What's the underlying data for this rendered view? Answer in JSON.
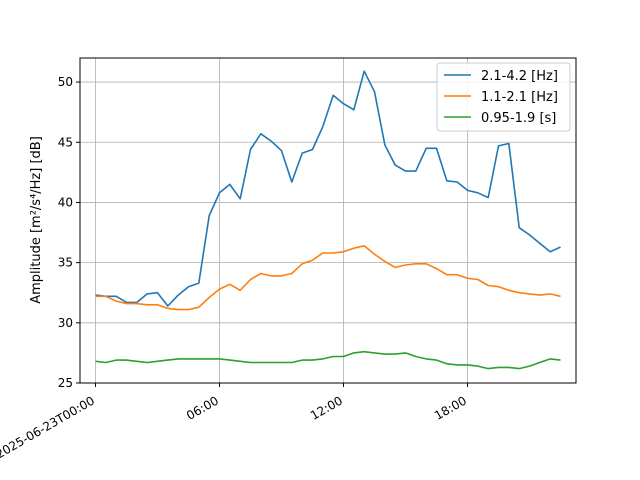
{
  "chart_data": {
    "type": "line",
    "ylabel": "Amplitude [m²/s⁴/Hz] [dB]",
    "ylim": [
      25,
      52
    ],
    "yticks": [
      25,
      30,
      35,
      40,
      45,
      50
    ],
    "xlim": [
      -0.75,
      23.25
    ],
    "xticks": [
      {
        "value": 0,
        "label": "2025-06-23T00:00"
      },
      {
        "value": 6,
        "label": "06:00"
      },
      {
        "value": 12,
        "label": "12:00"
      },
      {
        "value": 18,
        "label": "18:00"
      }
    ],
    "grid": true,
    "legend_position": "top-right",
    "x_hours": [
      0,
      0.5,
      1,
      1.5,
      2,
      2.5,
      3,
      3.5,
      4,
      4.5,
      5,
      5.5,
      6,
      6.5,
      7,
      7.5,
      8,
      8.5,
      9,
      9.5,
      10,
      10.5,
      11,
      11.5,
      12,
      12.5,
      13,
      13.5,
      14,
      14.5,
      15,
      15.5,
      16,
      16.5,
      17,
      17.5,
      18,
      18.5,
      19,
      19.5,
      20,
      20.5,
      21,
      21.5,
      22,
      22.5
    ],
    "series": [
      {
        "name": "2.1-4.2 [Hz]",
        "color": "#1f77b4",
        "values": [
          32.3,
          32.2,
          32.2,
          31.7,
          31.7,
          32.4,
          32.5,
          31.4,
          32.3,
          33.0,
          33.3,
          38.9,
          40.8,
          41.5,
          40.3,
          44.4,
          45.7,
          45.1,
          44.3,
          41.7,
          44.1,
          44.4,
          46.3,
          48.9,
          48.2,
          47.7,
          50.9,
          49.2,
          44.8,
          43.1,
          42.6,
          42.6,
          44.5,
          44.5,
          41.8,
          41.7,
          41.0,
          40.8,
          40.4,
          44.7,
          44.9,
          37.9,
          37.3,
          36.6,
          35.9,
          36.3
        ]
      },
      {
        "name": "1.1-2.1 [Hz]",
        "color": "#ff7f0e",
        "values": [
          32.2,
          32.2,
          31.8,
          31.6,
          31.6,
          31.5,
          31.5,
          31.2,
          31.1,
          31.1,
          31.3,
          32.1,
          32.8,
          33.2,
          32.7,
          33.6,
          34.1,
          33.9,
          33.9,
          34.1,
          34.9,
          35.2,
          35.8,
          35.8,
          35.9,
          36.2,
          36.4,
          35.7,
          35.1,
          34.6,
          34.8,
          34.9,
          34.9,
          34.5,
          34.0,
          34.0,
          33.7,
          33.6,
          33.1,
          33.0,
          32.7,
          32.5,
          32.4,
          32.3,
          32.4,
          32.2
        ]
      },
      {
        "name": "0.95-1.9 [s]",
        "color": "#2ca02c",
        "values": [
          26.8,
          26.7,
          26.9,
          26.9,
          26.8,
          26.7,
          26.8,
          26.9,
          27.0,
          27.0,
          27.0,
          27.0,
          27.0,
          26.9,
          26.8,
          26.7,
          26.7,
          26.7,
          26.7,
          26.7,
          26.9,
          26.9,
          27.0,
          27.2,
          27.2,
          27.5,
          27.6,
          27.5,
          27.4,
          27.4,
          27.5,
          27.2,
          27.0,
          26.9,
          26.6,
          26.5,
          26.5,
          26.4,
          26.2,
          26.3,
          26.3,
          26.2,
          26.4,
          26.7,
          27.0,
          26.9
        ]
      }
    ]
  }
}
